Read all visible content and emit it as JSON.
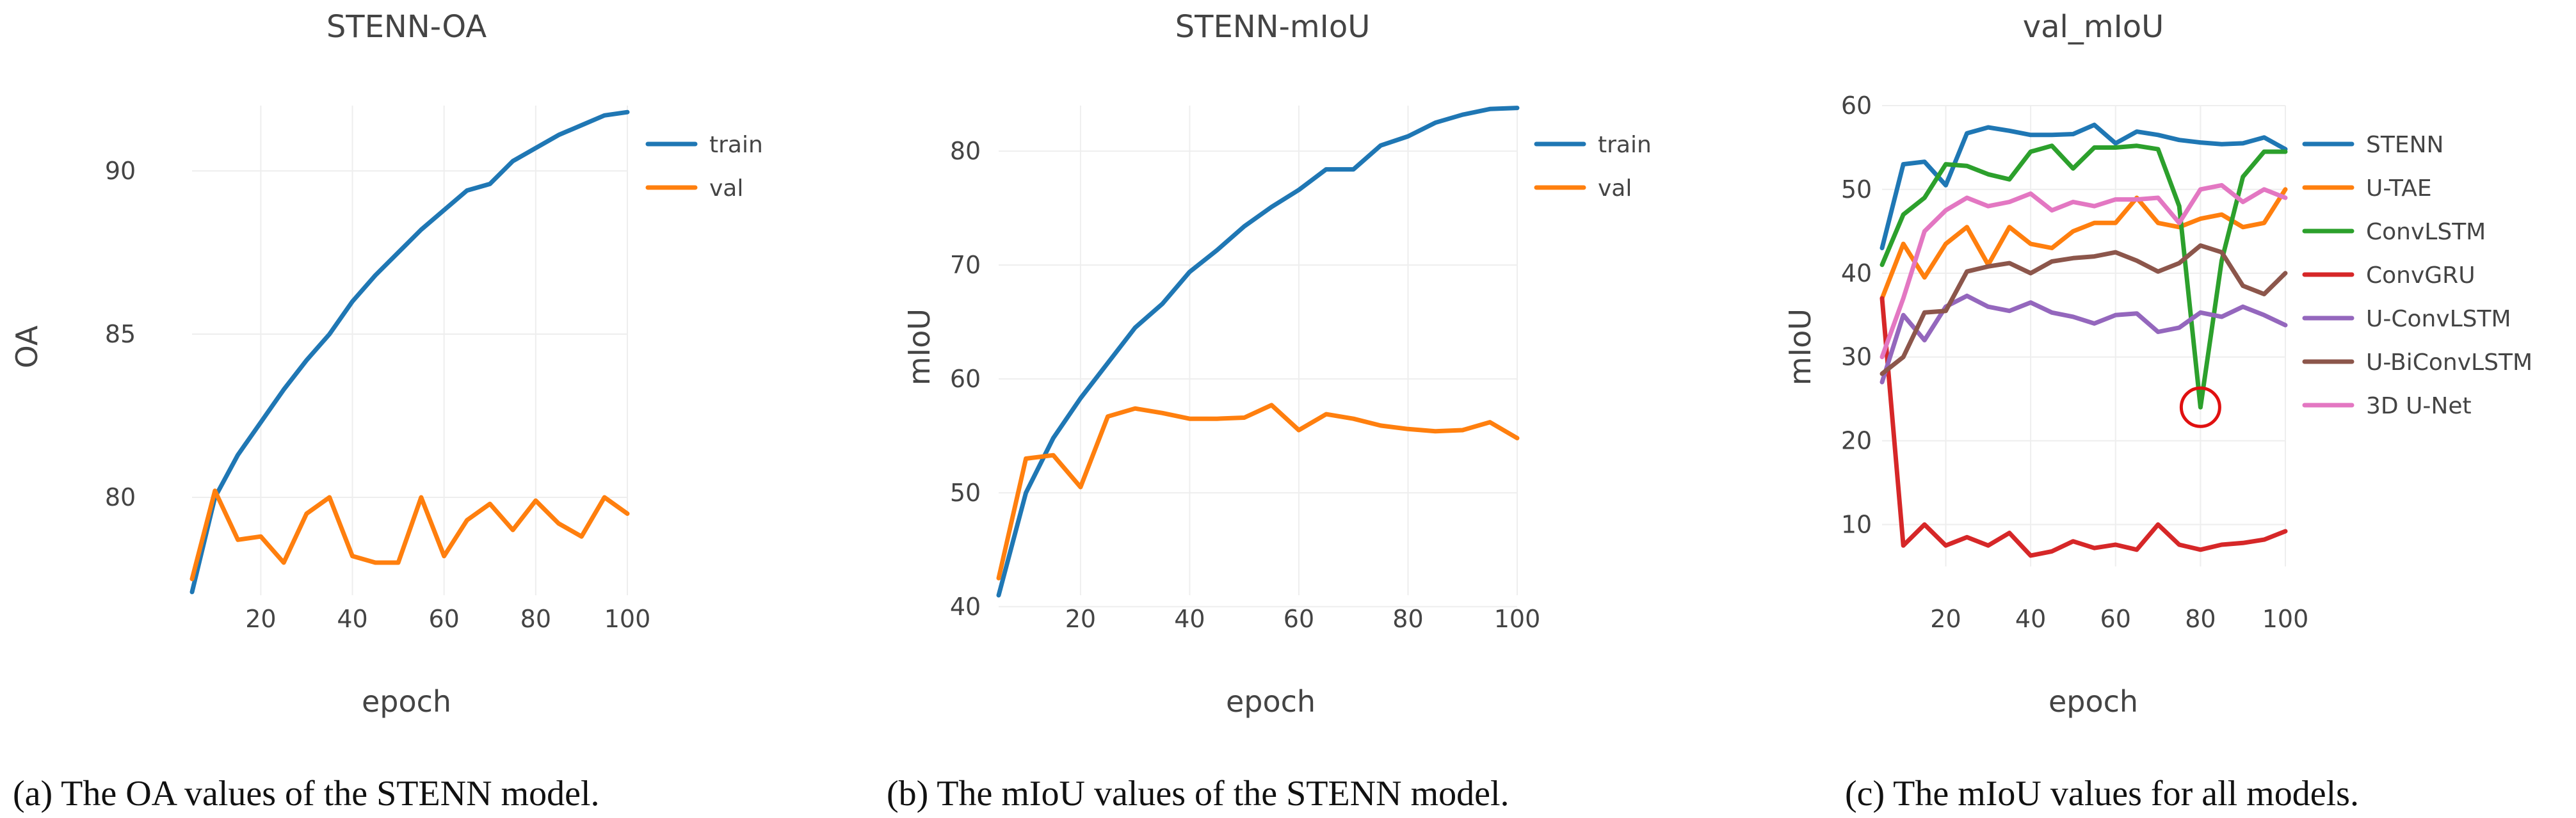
{
  "chart_data": [
    {
      "type": "line",
      "title": "STENN-OA",
      "xlabel": "epoch",
      "ylabel": "OA",
      "xlim": [
        5,
        100
      ],
      "ylim": [
        77,
        92
      ],
      "xticks": [
        20,
        40,
        60,
        80,
        100
      ],
      "yticks": [
        80,
        85,
        90
      ],
      "caption": "(a)  The OA values of the STENN model.",
      "legend_position": "top-right",
      "x": [
        5,
        10,
        15,
        20,
        25,
        30,
        35,
        40,
        45,
        50,
        55,
        60,
        65,
        70,
        75,
        80,
        85,
        90,
        95,
        100
      ],
      "series": [
        {
          "name": "train",
          "color": "#1f77b4",
          "values": [
            77.1,
            80.0,
            81.3,
            82.3,
            83.3,
            84.2,
            85.0,
            86.0,
            86.8,
            87.5,
            88.2,
            88.8,
            89.4,
            89.6,
            90.3,
            90.7,
            91.1,
            91.4,
            91.7,
            91.8
          ]
        },
        {
          "name": "val",
          "color": "#ff7f0e",
          "values": [
            77.5,
            80.2,
            78.7,
            78.8,
            78.0,
            79.5,
            80.0,
            78.2,
            78.0,
            78.0,
            80.0,
            78.2,
            79.3,
            79.8,
            79.0,
            79.9,
            79.2,
            78.8,
            80.0,
            79.5
          ]
        }
      ]
    },
    {
      "type": "line",
      "title": "STENN-mIoU",
      "xlabel": "epoch",
      "ylabel": "mIoU",
      "xlim": [
        5,
        100
      ],
      "ylim": [
        41,
        84
      ],
      "xticks": [
        20,
        40,
        60,
        80,
        100
      ],
      "yticks": [
        40,
        50,
        60,
        70,
        80
      ],
      "caption": "(b)  The mIoU values of the STENN model.",
      "legend_position": "top-right",
      "x": [
        5,
        10,
        15,
        20,
        25,
        30,
        35,
        40,
        45,
        50,
        55,
        60,
        65,
        70,
        75,
        80,
        85,
        90,
        95,
        100
      ],
      "series": [
        {
          "name": "train",
          "color": "#1f77b4",
          "values": [
            41,
            50,
            54.8,
            58.3,
            61.4,
            64.5,
            66.6,
            69.4,
            71.3,
            73.4,
            75.1,
            76.6,
            78.4,
            78.4,
            80.5,
            81.3,
            82.5,
            83.2,
            83.7,
            83.8
          ]
        },
        {
          "name": "val",
          "color": "#ff7f0e",
          "values": [
            42.5,
            53,
            53.3,
            50.5,
            56.7,
            57.4,
            57.0,
            56.5,
            56.5,
            56.6,
            57.7,
            55.5,
            56.9,
            56.5,
            55.9,
            55.6,
            55.4,
            55.5,
            56.2,
            54.8
          ]
        }
      ]
    },
    {
      "type": "line",
      "title": "val_mIoU",
      "xlabel": "epoch",
      "ylabel": "mIoU",
      "xlim": [
        5,
        100
      ],
      "ylim": [
        5,
        60
      ],
      "xticks": [
        20,
        40,
        60,
        80,
        100
      ],
      "yticks": [
        10,
        20,
        30,
        40,
        50,
        60
      ],
      "caption": "(c)  The mIoU values for all models.",
      "legend_position": "top-right",
      "annotation": {
        "type": "circle",
        "x": 80,
        "y": 24,
        "color": "#e01010"
      },
      "x": [
        5,
        10,
        15,
        20,
        25,
        30,
        35,
        40,
        45,
        50,
        55,
        60,
        65,
        70,
        75,
        80,
        85,
        90,
        95,
        100
      ],
      "series": [
        {
          "name": "STENN",
          "color": "#1f77b4",
          "values": [
            43,
            53,
            53.3,
            50.5,
            56.7,
            57.4,
            57.0,
            56.5,
            56.5,
            56.6,
            57.7,
            55.5,
            56.9,
            56.5,
            55.9,
            55.6,
            55.4,
            55.5,
            56.2,
            54.8
          ]
        },
        {
          "name": "U-TAE",
          "color": "#ff7f0e",
          "values": [
            37,
            43.5,
            39.5,
            43.5,
            45.5,
            41,
            45.5,
            43.5,
            43,
            45,
            46,
            46,
            49,
            46,
            45.5,
            46.5,
            47,
            45.5,
            46,
            50
          ]
        },
        {
          "name": "ConvLSTM",
          "color": "#2ca02c",
          "values": [
            41,
            47,
            49,
            53,
            52.8,
            51.8,
            51.2,
            54.5,
            55.2,
            52.5,
            55,
            55,
            55.2,
            54.8,
            48,
            24,
            41.5,
            51.5,
            54.5,
            54.5
          ]
        },
        {
          "name": "ConvGRU",
          "color": "#d62728",
          "values": [
            37,
            7.5,
            10,
            7.5,
            8.5,
            7.5,
            9,
            6.3,
            6.8,
            8,
            7.2,
            7.6,
            7.0,
            10,
            7.6,
            7.0,
            7.6,
            7.8,
            8.2,
            9.2
          ]
        },
        {
          "name": "U-ConvLSTM",
          "color": "#9467bd",
          "values": [
            27,
            35,
            32,
            36,
            37.3,
            36,
            35.5,
            36.5,
            35.3,
            34.8,
            34,
            35,
            35.2,
            33,
            33.5,
            35.3,
            34.8,
            36,
            35,
            33.8
          ]
        },
        {
          "name": "U-BiConvLSTM",
          "color": "#8c564b",
          "values": [
            28,
            30,
            35.3,
            35.5,
            40.2,
            40.8,
            41.2,
            40,
            41.4,
            41.8,
            42,
            42.5,
            41.5,
            40.2,
            41.2,
            43.3,
            42.5,
            38.5,
            37.5,
            40
          ]
        },
        {
          "name": "3D U-Net",
          "color": "#e377c2",
          "values": [
            30,
            37,
            45,
            47.5,
            49,
            48,
            48.5,
            49.5,
            47.5,
            48.5,
            48,
            48.8,
            48.8,
            49,
            46,
            50,
            50.5,
            48.5,
            50,
            49
          ]
        }
      ]
    }
  ]
}
